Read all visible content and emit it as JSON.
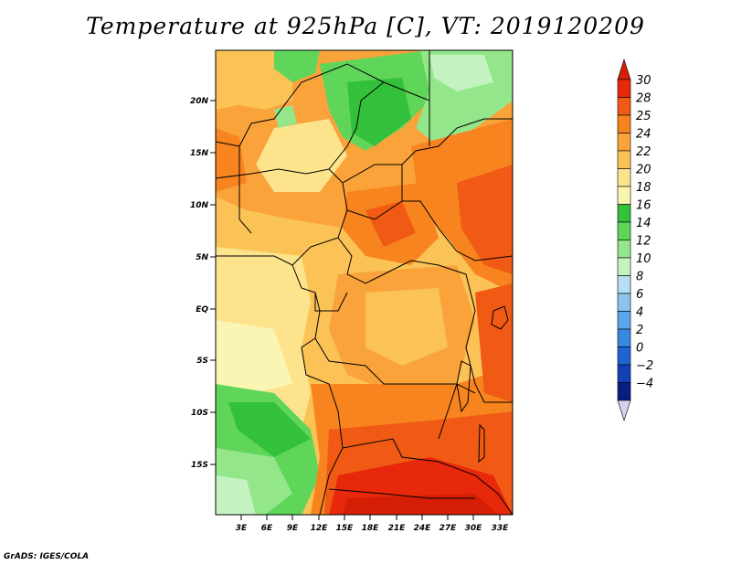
{
  "title": "Temperature at 925hPa [C], VT: 2019120209",
  "credit": "GrADS: IGES/COLA",
  "map": {
    "lat_labels": [
      "20N",
      "15N",
      "10N",
      "5N",
      "EQ",
      "5S",
      "10S",
      "15S"
    ],
    "lon_labels": [
      "3E",
      "6E",
      "9E",
      "12E",
      "15E",
      "18E",
      "21E",
      "24E",
      "27E",
      "30E",
      "33E"
    ]
  },
  "colorbar": {
    "labels": [
      "30",
      "28",
      "25",
      "24",
      "22",
      "20",
      "18",
      "16",
      "14",
      "12",
      "10",
      "8",
      "6",
      "4",
      "2",
      "0",
      "−2",
      "−4"
    ],
    "colors": [
      "#e8280a",
      "#f05a14",
      "#f7841e",
      "#f9a33a",
      "#fbc256",
      "#fde38c",
      "#fbf5b4",
      "#33c03a",
      "#5fd55a",
      "#93e68a",
      "#c4f2c0",
      "#b8ddf6",
      "#8cc4f0",
      "#5ea6ea",
      "#3a87e0",
      "#1f64d2",
      "#1241b4",
      "#0a1e82"
    ],
    "top_color": "#d41e06",
    "bottom_color": "#d2d2f2"
  }
}
